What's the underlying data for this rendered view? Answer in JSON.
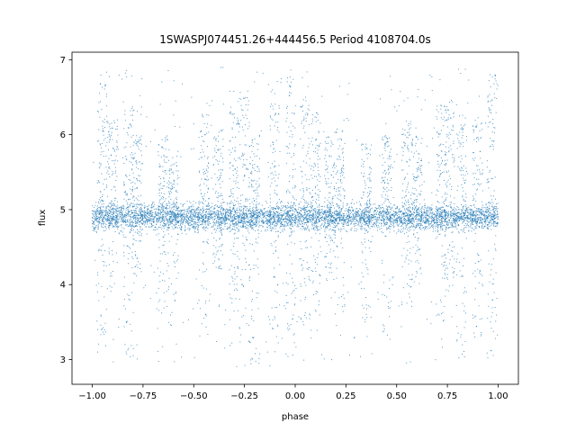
{
  "chart_data": {
    "type": "scatter",
    "title": "1SWASPJ074451.26+444456.5 Period 4108704.0s",
    "xlabel": "phase",
    "ylabel": "flux",
    "xlim": [
      -1.1,
      1.1
    ],
    "ylim": [
      2.67,
      7.1
    ],
    "xticks": [
      -1.0,
      -0.75,
      -0.5,
      -0.25,
      0.0,
      0.25,
      0.5,
      0.75,
      1.0
    ],
    "xtick_labels": [
      "−1.00",
      "−0.75",
      "−0.50",
      "−0.25",
      "0.00",
      "0.25",
      "0.50",
      "0.75",
      "1.00"
    ],
    "yticks": [
      3,
      4,
      5,
      6,
      7
    ],
    "ytick_labels": [
      "3",
      "4",
      "5",
      "6",
      "7"
    ],
    "grid": false,
    "legend": "none",
    "point_color": "#1f77b4",
    "series": [
      {
        "x_range": [
          -1.0,
          1.0
        ],
        "baseline_flux": 4.9,
        "band_flux_range": [
          4.6,
          5.25
        ],
        "spikes": [
          {
            "phase": -0.95,
            "flux_max": 6.7,
            "flux_min": 3.0
          },
          {
            "phase": -0.9,
            "flux_max": 6.2,
            "flux_min": 3.9
          },
          {
            "phase": -0.82,
            "flux_max": 6.4,
            "flux_min": 3.0
          },
          {
            "phase": -0.78,
            "flux_max": 6.0,
            "flux_min": 4.1
          },
          {
            "phase": -0.65,
            "flux_max": 6.0,
            "flux_min": 3.6
          },
          {
            "phase": -0.6,
            "flux_max": 5.8,
            "flux_min": 3.4
          },
          {
            "phase": -0.45,
            "flux_max": 6.3,
            "flux_min": 3.3
          },
          {
            "phase": -0.38,
            "flux_max": 6.1,
            "flux_min": 4.2
          },
          {
            "phase": -0.3,
            "flux_max": 6.3,
            "flux_min": 3.5
          },
          {
            "phase": -0.25,
            "flux_max": 6.6,
            "flux_min": 3.2
          },
          {
            "phase": -0.2,
            "flux_max": 6.0,
            "flux_min": 2.9
          },
          {
            "phase": -0.1,
            "flux_max": 6.6,
            "flux_min": 3.4
          },
          {
            "phase": -0.02,
            "flux_max": 6.8,
            "flux_min": 3.0
          },
          {
            "phase": 0.05,
            "flux_max": 6.5,
            "flux_min": 3.4
          },
          {
            "phase": 0.1,
            "flux_max": 6.3,
            "flux_min": 3.2
          },
          {
            "phase": 0.17,
            "flux_max": 6.0,
            "flux_min": 4.0
          },
          {
            "phase": 0.22,
            "flux_max": 6.1,
            "flux_min": 3.6
          },
          {
            "phase": 0.35,
            "flux_max": 5.9,
            "flux_min": 3.5
          },
          {
            "phase": 0.45,
            "flux_max": 6.0,
            "flux_min": 3.1
          },
          {
            "phase": 0.55,
            "flux_max": 6.2,
            "flux_min": 3.6
          },
          {
            "phase": 0.6,
            "flux_max": 6.0,
            "flux_min": 4.1
          },
          {
            "phase": 0.72,
            "flux_max": 6.4,
            "flux_min": 3.5
          },
          {
            "phase": 0.76,
            "flux_max": 6.5,
            "flux_min": 3.9
          },
          {
            "phase": 0.82,
            "flux_max": 6.3,
            "flux_min": 2.9
          },
          {
            "phase": 0.9,
            "flux_max": 6.2,
            "flux_min": 3.3
          },
          {
            "phase": 0.97,
            "flux_max": 6.8,
            "flux_min": 3.0
          }
        ],
        "outlier_flux_range": [
          2.9,
          6.9
        ]
      }
    ]
  }
}
